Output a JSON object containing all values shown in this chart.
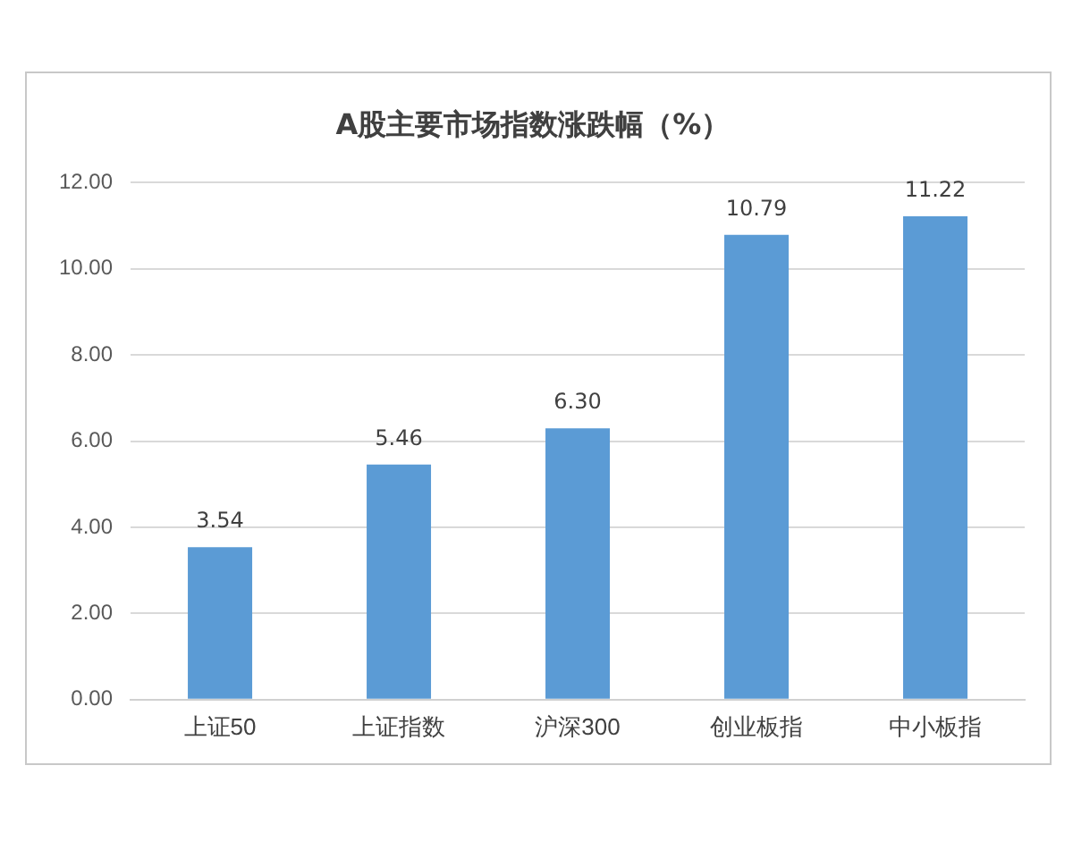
{
  "chart_data": {
    "type": "bar",
    "title": "A股主要市场指数涨跌幅（%）",
    "categories": [
      "上证50",
      "上证指数",
      "沪深300",
      "创业板指",
      "中小板指"
    ],
    "values": [
      3.54,
      5.46,
      6.3,
      10.79,
      11.22
    ],
    "value_labels": [
      "3.54",
      "5.46",
      "6.30",
      "10.79",
      "11.22"
    ],
    "color": "#5b9bd5",
    "ylim": [
      0,
      12
    ],
    "yticks": [
      {
        "value": 0,
        "label": "0.00"
      },
      {
        "value": 2,
        "label": "2.00"
      },
      {
        "value": 4,
        "label": "4.00"
      },
      {
        "value": 6,
        "label": "6.00"
      },
      {
        "value": 8,
        "label": "8.00"
      },
      {
        "value": 10,
        "label": "10.00"
      },
      {
        "value": 12,
        "label": "12.00"
      }
    ],
    "grid": "y",
    "legend": false
  }
}
